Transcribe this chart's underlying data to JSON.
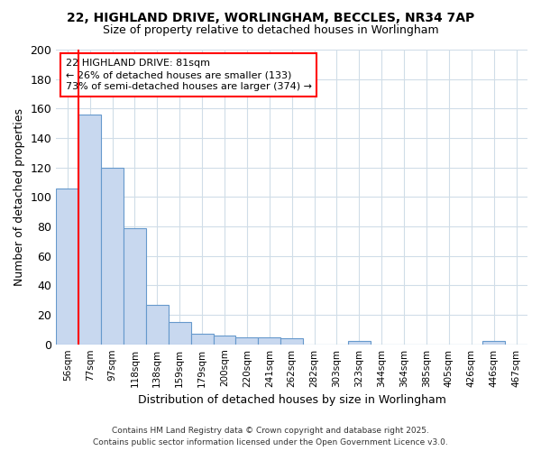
{
  "title_line1": "22, HIGHLAND DRIVE, WORLINGHAM, BECCLES, NR34 7AP",
  "title_line2": "Size of property relative to detached houses in Worlingham",
  "xlabel": "Distribution of detached houses by size in Worlingham",
  "ylabel": "Number of detached properties",
  "bar_color": "#c8d8ef",
  "bar_edge_color": "#6699cc",
  "categories": [
    "56sqm",
    "77sqm",
    "97sqm",
    "118sqm",
    "138sqm",
    "159sqm",
    "179sqm",
    "200sqm",
    "220sqm",
    "241sqm",
    "262sqm",
    "282sqm",
    "303sqm",
    "323sqm",
    "344sqm",
    "364sqm",
    "385sqm",
    "405sqm",
    "426sqm",
    "446sqm",
    "467sqm"
  ],
  "values": [
    106,
    156,
    120,
    79,
    27,
    15,
    7,
    6,
    5,
    5,
    4,
    0,
    0,
    2,
    0,
    0,
    0,
    0,
    0,
    2,
    0
  ],
  "ylim": [
    0,
    200
  ],
  "yticks": [
    0,
    20,
    40,
    60,
    80,
    100,
    120,
    140,
    160,
    180,
    200
  ],
  "annotation_line1": "22 HIGHLAND DRIVE: 81sqm",
  "annotation_line2": "← 26% of detached houses are smaller (133)",
  "annotation_line3": "73% of semi-detached houses are larger (374) →",
  "red_line_x": 0.5,
  "background_color": "#ffffff",
  "grid_color": "#d0dde8",
  "footer_line1": "Contains HM Land Registry data © Crown copyright and database right 2025.",
  "footer_line2": "Contains public sector information licensed under the Open Government Licence v3.0."
}
